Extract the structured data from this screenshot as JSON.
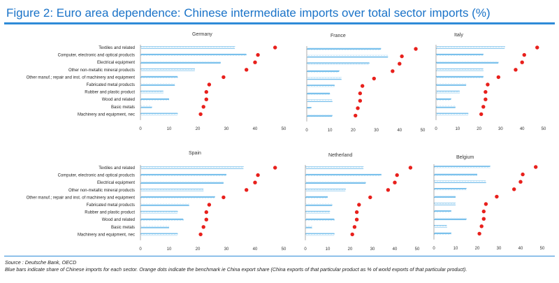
{
  "figure": {
    "title": "Figure 2: Euro area dependence: Chinese intermediate imports over total sector imports (%)",
    "source": "Source : Deutsche Bank, OECD",
    "note": "Blue bars indicate share of Chinese imports for each sector. Orange dots indicate the benchmark ie China export share (China exports of that particular product as % of world exports of that particular product)."
  },
  "colors": {
    "bar": "#3aa3e3",
    "dot": "#e8201c",
    "title": "#1a73c8"
  },
  "chart_data": [
    {
      "type": "bar",
      "title": "Germany",
      "categories": [
        "Textiles and related",
        "Computer, electronic and optical products",
        "Electrical equipment",
        "Other non-metallic mineral products",
        "Other manuf.; repair and inst. of machinery and equipment",
        "Fabricated metal products",
        "Rubber and plastic product",
        "Wood and related",
        "Basic metals",
        "Machinery and equipment, nec"
      ],
      "series": [
        {
          "values": [
            33,
            37,
            28,
            19,
            13,
            12,
            8,
            10,
            4,
            13
          ]
        },
        {
          "values": [
            47,
            41,
            40,
            37,
            29,
            24,
            23,
            23,
            22,
            21
          ]
        }
      ],
      "xticks": [
        0,
        10,
        20,
        30,
        40,
        50
      ],
      "xlim": [
        0,
        50
      ]
    },
    {
      "type": "bar",
      "title": "France",
      "categories": [
        "Textiles and related",
        "Computer, electronic and optical products",
        "Electrical equipment",
        "Other non-metallic mineral products",
        "Other manuf.; repair and inst. of machinery and equipment",
        "Fabricated metal products",
        "Rubber and plastic product",
        "Wood and related",
        "Basic metals",
        "Machinery and equipment, nec"
      ],
      "series": [
        {
          "values": [
            32,
            35,
            27,
            14,
            15,
            12,
            10,
            11,
            2,
            11
          ]
        },
        {
          "values": [
            47,
            41,
            40,
            37,
            29,
            24,
            23,
            23,
            22,
            21
          ]
        }
      ],
      "xticks": [
        0,
        10,
        20,
        30,
        40,
        50
      ],
      "xlim": [
        0,
        50
      ]
    },
    {
      "type": "bar",
      "title": "Italy",
      "categories": [
        "Textiles and related",
        "Computer, electronic and optical products",
        "Electrical equipment",
        "Other non-metallic mineral products",
        "Other manuf.; repair and inst. of machinery and equipment",
        "Fabricated metal products",
        "Rubber and plastic product",
        "Wood and related",
        "Basic metals",
        "Machinery and equipment, nec"
      ],
      "series": [
        {
          "values": [
            32,
            22,
            29,
            22,
            22,
            14,
            11,
            7,
            9,
            15
          ]
        },
        {
          "values": [
            47,
            41,
            40,
            37,
            29,
            24,
            23,
            23,
            22,
            21
          ]
        }
      ],
      "xticks": [
        0,
        10,
        20,
        30,
        40,
        50
      ],
      "xlim": [
        0,
        50
      ]
    },
    {
      "type": "bar",
      "title": "Spain",
      "categories": [
        "Textiles and related",
        "Computer, electronic and optical products",
        "Electrical equipment",
        "Other non-metallic mineral products",
        "Other manuf.; repair and inst. of machinery and equipment",
        "Fabricated metal products",
        "Rubber and plastic product",
        "Wood and related",
        "Basic metals",
        "Machinery and equipment, nec"
      ],
      "series": [
        {
          "values": [
            36,
            30,
            29,
            22,
            26,
            17,
            13,
            15,
            10,
            13
          ]
        },
        {
          "values": [
            47,
            41,
            40,
            37,
            29,
            24,
            23,
            23,
            22,
            21
          ]
        }
      ],
      "xticks": [
        0,
        10,
        20,
        30,
        40,
        50
      ],
      "xlim": [
        0,
        50
      ]
    },
    {
      "type": "bar",
      "title": "Netherland",
      "categories": [
        "Textiles and related",
        "Computer, electronic and optical products",
        "Electrical equipment",
        "Other non-metallic mineral products",
        "Other manuf.; repair and inst. of machinery and equipment",
        "Fabricated metal products",
        "Rubber and plastic product",
        "Wood and related",
        "Basic metals",
        "Machinery and equipment, nec"
      ],
      "series": [
        {
          "values": [
            26,
            34,
            27,
            18,
            10,
            12,
            11,
            13,
            3,
            13
          ]
        },
        {
          "values": [
            47,
            41,
            40,
            37,
            29,
            24,
            23,
            23,
            22,
            21
          ]
        }
      ],
      "xticks": [
        0,
        10,
        20,
        30,
        40,
        50
      ],
      "xlim": [
        0,
        50
      ]
    },
    {
      "type": "bar",
      "title": "Belgium",
      "categories": [
        "Textiles and related",
        "Computer, electronic and optical products",
        "Electrical equipment",
        "Other non-metallic mineral products",
        "Other manuf.; repair and inst. of machinery and equipment",
        "Fabricated metal products",
        "Rubber and plastic product",
        "Wood and related",
        "Basic metals",
        "Machinery and equipment, nec"
      ],
      "series": [
        {
          "values": [
            26,
            20,
            24,
            15,
            10,
            10,
            8,
            15,
            6,
            8
          ]
        },
        {
          "values": [
            47,
            41,
            40,
            37,
            29,
            24,
            23,
            23,
            22,
            21
          ]
        }
      ],
      "xticks": [
        0,
        10,
        20,
        30,
        40,
        50
      ],
      "xlim": [
        0,
        50
      ]
    }
  ]
}
